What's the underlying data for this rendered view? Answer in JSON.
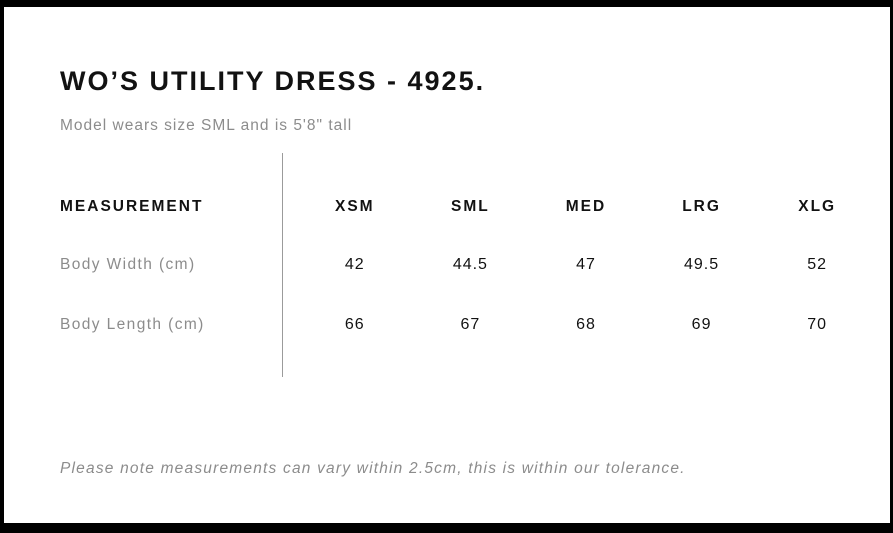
{
  "chart_data": {
    "type": "table",
    "title": "WO’S UTILITY DRESS - 4925.",
    "subtitle": "Model wears size SML and is 5'8\" tall",
    "columns": [
      "MEASUREMENT",
      "XSM",
      "SML",
      "MED",
      "LRG",
      "XLG"
    ],
    "rows": [
      {
        "label": "Body Width (cm)",
        "values": [
          "42",
          "44.5",
          "47",
          "49.5",
          "52"
        ]
      },
      {
        "label": "Body Length (cm)",
        "values": [
          "66",
          "67",
          "68",
          "69",
          "70"
        ]
      }
    ],
    "footnote": "Please note measurements can vary within 2.5cm, this is within our tolerance."
  },
  "colors": {
    "frame": "#000000",
    "background": "#ffffff",
    "ink": "#121212",
    "muted": "#8c8c8c",
    "divider": "#9b9b9b"
  }
}
